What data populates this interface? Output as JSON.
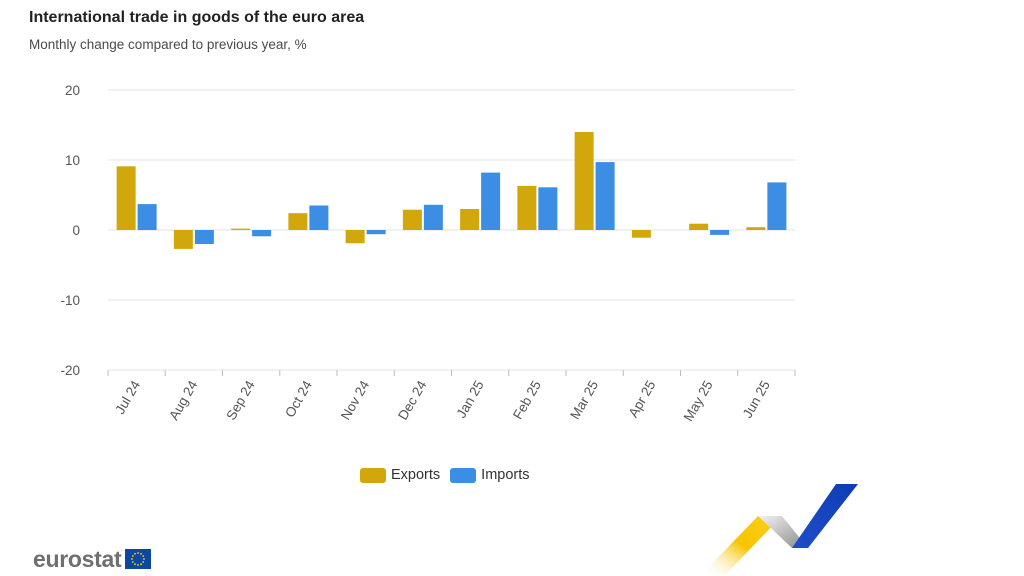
{
  "header": {
    "title": "International trade in goods of the euro area",
    "subtitle": "Monthly change compared to previous year, %"
  },
  "colors": {
    "exports": "#d2a70b",
    "imports": "#3b8ee3",
    "grid": "#e3e3e3",
    "tick_text": "#555555"
  },
  "chart_data": {
    "type": "bar",
    "categories": [
      "Jul 24",
      "Aug 24",
      "Sep 24",
      "Oct 24",
      "Nov 24",
      "Dec 24",
      "Jan 25",
      "Feb 25",
      "Mar 25",
      "Apr 25",
      "May 25",
      "Jun 25"
    ],
    "series": [
      {
        "name": "Exports",
        "values": [
          9.1,
          -2.7,
          0.2,
          2.4,
          -1.9,
          2.9,
          3.0,
          6.3,
          14.0,
          -1.1,
          0.9,
          0.4
        ]
      },
      {
        "name": "Imports",
        "values": [
          3.7,
          -2.0,
          -0.9,
          3.5,
          -0.6,
          3.6,
          8.2,
          6.1,
          9.7,
          0.0,
          -0.7,
          6.8
        ]
      }
    ],
    "ylim": [
      -20,
      20
    ],
    "yticks": [
      20,
      10,
      0,
      -10,
      -20
    ],
    "grid": true,
    "legend_position": "bottom-center"
  },
  "legend": {
    "items": [
      {
        "label": "Exports",
        "color": "#d2a70b"
      },
      {
        "label": "Imports",
        "color": "#3b8ee3"
      }
    ]
  },
  "logo": {
    "text": "eurostat"
  }
}
